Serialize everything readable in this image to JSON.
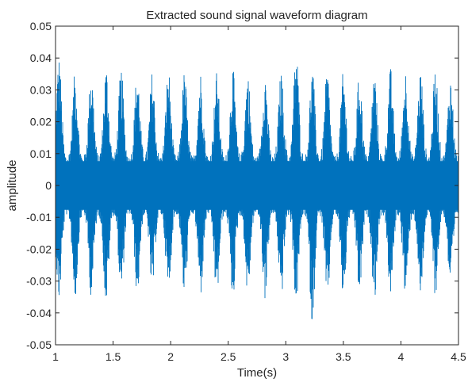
{
  "chart_data": {
    "type": "line",
    "title": "Extracted sound signal waveform diagram",
    "xlabel": "Time(s)",
    "ylabel": "amplitude",
    "xlim": [
      1,
      4.5
    ],
    "ylim": [
      -0.05,
      0.05
    ],
    "xticks": [
      1,
      1.5,
      2,
      2.5,
      3,
      3.5,
      4,
      4.5
    ],
    "xtick_labels": [
      "1",
      "1.5",
      "2",
      "2.5",
      "3",
      "3.5",
      "4",
      "4.5"
    ],
    "yticks": [
      -0.05,
      -0.04,
      -0.03,
      -0.02,
      -0.01,
      0,
      0.01,
      0.02,
      0.03,
      0.04,
      0.05
    ],
    "ytick_labels": [
      "-0.05",
      "-0.04",
      "-0.03",
      "-0.02",
      "-0.01",
      "0",
      "0.01",
      "0.02",
      "0.03",
      "0.04",
      "0.05"
    ],
    "grid": false,
    "series": [
      {
        "color": "#0072BD",
        "description_points": {
          "burst_times": [
            1.03,
            1.17,
            1.31,
            1.44,
            1.57,
            1.71,
            1.84,
            1.98,
            2.12,
            2.26,
            2.4,
            2.54,
            2.67,
            2.82,
            2.96,
            3.09,
            3.23,
            3.36,
            3.5,
            3.64,
            3.77,
            3.91,
            4.04,
            4.17,
            4.3,
            4.43
          ],
          "burst_peak_max": [
            0.041,
            0.036,
            0.037,
            0.038,
            0.037,
            0.037,
            0.036,
            0.037,
            0.036,
            0.036,
            0.036,
            0.037,
            0.036,
            0.036,
            0.036,
            0.044,
            0.037,
            0.037,
            0.036,
            0.036,
            0.036,
            0.037,
            0.037,
            0.037,
            0.037,
            0.035
          ],
          "burst_peak_min": [
            -0.037,
            -0.036,
            -0.035,
            -0.038,
            -0.035,
            -0.035,
            -0.034,
            -0.035,
            -0.036,
            -0.035,
            -0.036,
            -0.036,
            -0.035,
            -0.036,
            -0.036,
            -0.038,
            -0.044,
            -0.038,
            -0.036,
            -0.035,
            -0.036,
            -0.036,
            -0.036,
            -0.036,
            -0.035,
            -0.033
          ],
          "baseline_amplitude": 0.009
        }
      }
    ]
  }
}
